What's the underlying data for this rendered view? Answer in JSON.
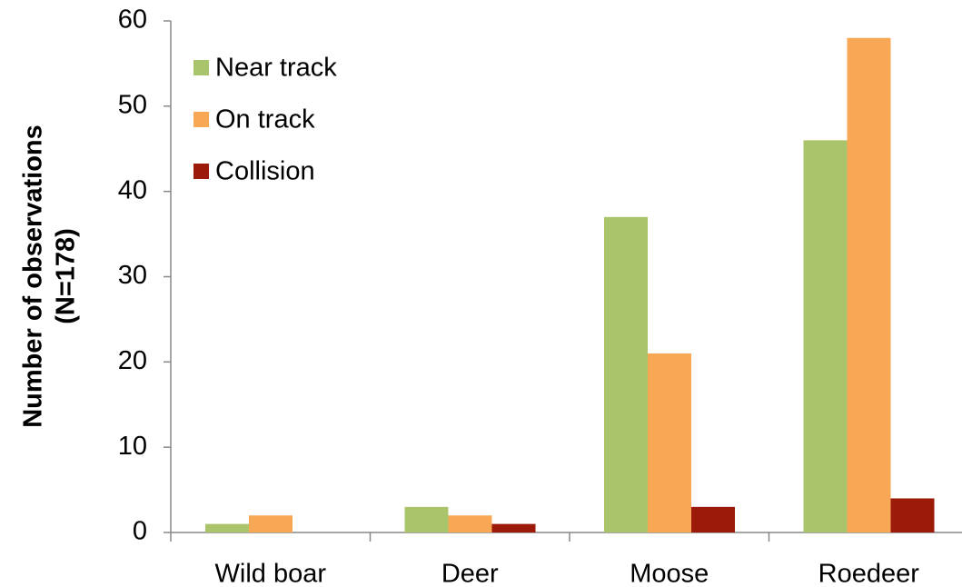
{
  "chart_data": {
    "type": "bar",
    "ylabel": [
      "Number of observations",
      "(N=178)"
    ],
    "categories": [
      "Wild boar",
      "Deer",
      "Moose",
      "Roedeer"
    ],
    "series": [
      {
        "name": "Near track",
        "color": "#a9c46b",
        "values": [
          1,
          3,
          37,
          46
        ]
      },
      {
        "name": "On track",
        "color": "#f8a755",
        "values": [
          2,
          2,
          21,
          58
        ]
      },
      {
        "name": "Collision",
        "color": "#9b1a0a",
        "values": [
          0,
          1,
          3,
          4
        ]
      }
    ],
    "ylim": [
      0,
      60
    ],
    "yticks": [
      0,
      10,
      20,
      30,
      40,
      50,
      60
    ],
    "grid": false,
    "legend": "top-left"
  }
}
